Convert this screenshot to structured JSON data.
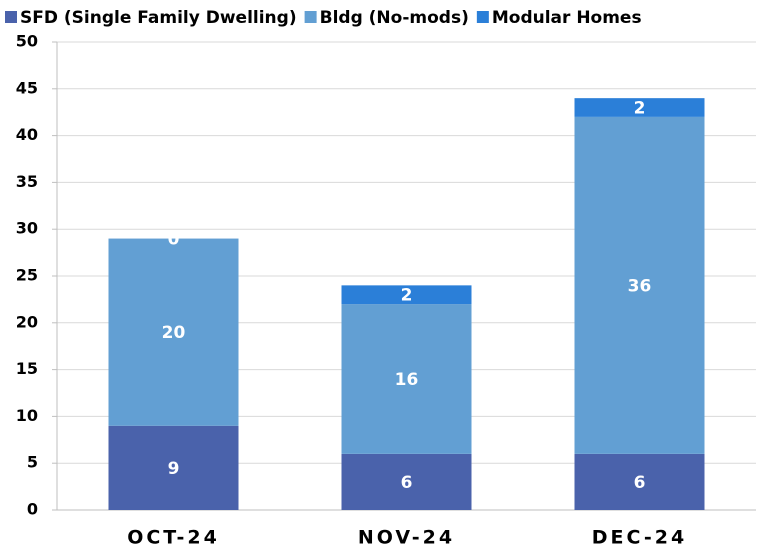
{
  "chart_data": {
    "type": "stacked_bar",
    "categories": [
      "OCT-24",
      "NOV-24",
      "DEC-24"
    ],
    "series": [
      {
        "name": "SFD (Single Family Dwelling)",
        "color": "#4a62ab",
        "values": [
          9,
          6,
          6
        ]
      },
      {
        "name": "Bldg (No-mods)",
        "color": "#629fd3",
        "values": [
          20,
          16,
          36
        ]
      },
      {
        "name": "Modular Homes",
        "color": "#2b7fd8",
        "values": [
          0,
          2,
          2
        ]
      }
    ],
    "ylim": [
      0,
      50
    ],
    "yticks": [
      0,
      5,
      10,
      15,
      20,
      25,
      30,
      35,
      40,
      45,
      50
    ],
    "grid": true,
    "legend": "top"
  }
}
